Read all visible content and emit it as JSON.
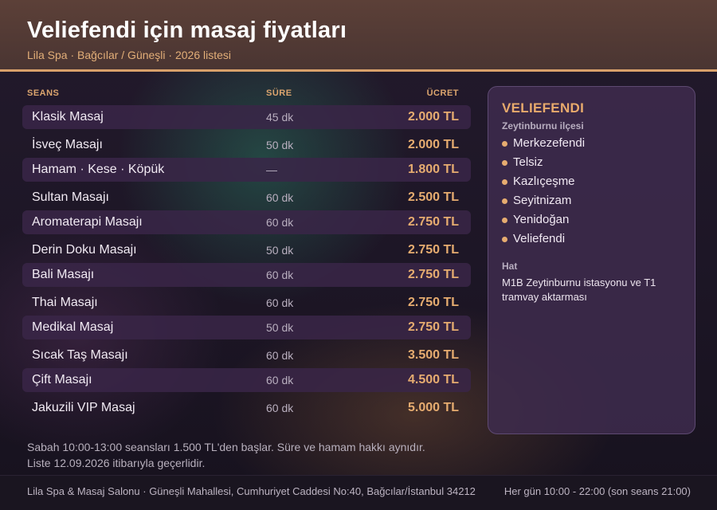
{
  "header": {
    "title": "Veliefendi için masaj fiyatları",
    "subtitle": "Lila Spa · Bağcılar / Güneşli · 2026 listesi"
  },
  "table": {
    "columns": {
      "name": "SEANS",
      "duration": "SÜRE",
      "price": "ÜCRET"
    },
    "rows": [
      {
        "name": "Klasik Masaj",
        "duration": "45 dk",
        "price": "2.000 TL"
      },
      {
        "name": "İsveç Masajı",
        "duration": "50 dk",
        "price": "2.000 TL"
      },
      {
        "name": "Hamam · Kese · Köpük",
        "duration": "—",
        "price": "1.800 TL"
      },
      {
        "name": "Sultan Masajı",
        "duration": "60 dk",
        "price": "2.500 TL"
      },
      {
        "name": "Aromaterapi Masajı",
        "duration": "60 dk",
        "price": "2.750 TL"
      },
      {
        "name": "Derin Doku Masajı",
        "duration": "50 dk",
        "price": "2.750 TL"
      },
      {
        "name": "Bali Masajı",
        "duration": "60 dk",
        "price": "2.750 TL"
      },
      {
        "name": "Thai Masajı",
        "duration": "60 dk",
        "price": "2.750 TL"
      },
      {
        "name": "Medikal Masaj",
        "duration": "50 dk",
        "price": "2.750 TL"
      },
      {
        "name": "Sıcak Taş Masajı",
        "duration": "60 dk",
        "price": "3.500 TL"
      },
      {
        "name": "Çift Masajı",
        "duration": "60 dk",
        "price": "4.500 TL"
      },
      {
        "name": "Jakuzili VIP Masaj",
        "duration": "60 dk",
        "price": "5.000 TL"
      }
    ]
  },
  "panel": {
    "title": "VELIEFENDI",
    "subtitle": "Zeytinburnu ilçesi",
    "neighborhoods": [
      "Merkezefendi",
      "Telsiz",
      "Kazlıçeşme",
      "Seyitnizam",
      "Yenidoğan",
      "Veliefendi"
    ],
    "line_label": "Hat",
    "line_text": "M1B Zeytinburnu istasyonu ve T1 tramvay aktarması"
  },
  "note": {
    "line1": "Sabah 10:00-13:00 seansları 1.500 TL'den başlar. Süre ve hamam hakkı aynıdır.",
    "line2": "Liste 12.09.2026 itibarıyla geçerlidir."
  },
  "footer": {
    "address": "Lila Spa & Masaj Salonu · Güneşli Mahallesi, Cumhuriyet Caddesi No:40, Bağcılar/İstanbul 34212",
    "hours": "Her gün 10:00 - 22:00 (son seans 21:00)"
  },
  "colors": {
    "accent": "#e6ac70",
    "header_bg": "#4f3834",
    "panel_bg": "#3e2c4e",
    "row_alt_bg": "#3a2648"
  }
}
